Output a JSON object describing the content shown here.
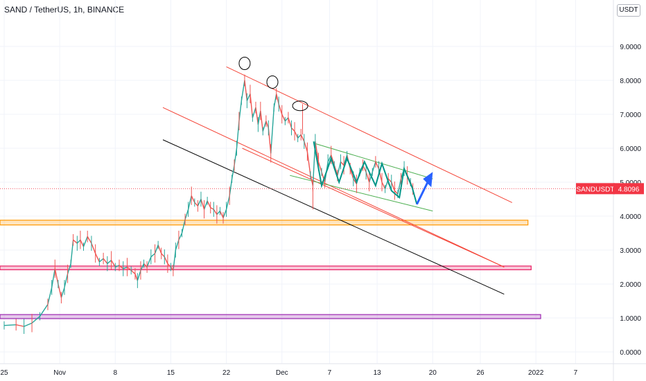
{
  "header": {
    "title": "SAND / TetherUS, 1h, BINANCE",
    "currency": "USDT"
  },
  "chart_data": {
    "type": "line",
    "title": "SAND / TetherUS, 1h, BINANCE",
    "xlabel": "",
    "ylabel": "",
    "ylim": [
      -0.4,
      10.1
    ],
    "grid": true,
    "y_ticks": [
      "0.0000",
      "1.0000",
      "2.0000",
      "3.0000",
      "4.0000",
      "5.0000",
      "6.0000",
      "7.0000",
      "8.0000",
      "9.0000"
    ],
    "x_ticks": [
      {
        "label": "25",
        "day": 0
      },
      {
        "label": "Nov",
        "day": 7
      },
      {
        "label": "8",
        "day": 14
      },
      {
        "label": "15",
        "day": 21
      },
      {
        "label": "22",
        "day": 28
      },
      {
        "label": "Dec",
        "day": 35
      },
      {
        "label": "7",
        "day": 41
      },
      {
        "label": "13",
        "day": 47
      },
      {
        "label": "20",
        "day": 54
      },
      {
        "label": "26",
        "day": 60
      },
      {
        "label": "2022",
        "day": 67
      },
      {
        "label": "7",
        "day": 72
      }
    ],
    "series": [
      {
        "color": "#26a69a",
        "points": [
          [
            0.0,
            0.78
          ],
          [
            1.5,
            0.8
          ],
          [
            2.5,
            0.75
          ],
          [
            3.5,
            0.85
          ],
          [
            4.5,
            1.05
          ],
          [
            5.5,
            1.4
          ],
          [
            6.0,
            1.9
          ],
          [
            6.4,
            2.45
          ],
          [
            6.8,
            2.0
          ],
          [
            7.2,
            1.6
          ],
          [
            7.6,
            1.9
          ],
          [
            8.0,
            2.3
          ],
          [
            8.4,
            2.6
          ],
          [
            8.7,
            3.3
          ],
          [
            9.2,
            3.2
          ],
          [
            9.6,
            3.3
          ],
          [
            10.0,
            3.1
          ],
          [
            10.5,
            3.4
          ],
          [
            11.0,
            3.2
          ],
          [
            11.5,
            2.9
          ],
          [
            12.0,
            2.65
          ],
          [
            12.5,
            2.75
          ],
          [
            13.0,
            2.6
          ],
          [
            13.5,
            2.7
          ],
          [
            14.0,
            2.5
          ],
          [
            14.5,
            2.55
          ],
          [
            15.0,
            2.45
          ],
          [
            15.5,
            2.5
          ],
          [
            16.0,
            2.4
          ],
          [
            16.5,
            2.3
          ],
          [
            16.8,
            2.1
          ],
          [
            17.2,
            2.4
          ],
          [
            17.6,
            2.6
          ],
          [
            18.0,
            2.5
          ],
          [
            18.5,
            2.8
          ],
          [
            19.0,
            2.9
          ],
          [
            19.4,
            3.15
          ],
          [
            19.8,
            2.9
          ],
          [
            20.2,
            2.8
          ],
          [
            20.6,
            2.6
          ],
          [
            21.0,
            2.5
          ],
          [
            21.3,
            2.4
          ],
          [
            21.6,
            3.0
          ],
          [
            22.0,
            3.3
          ],
          [
            22.4,
            3.5
          ],
          [
            22.8,
            3.9
          ],
          [
            23.2,
            4.2
          ],
          [
            23.6,
            4.6
          ],
          [
            24.0,
            4.4
          ],
          [
            24.4,
            4.3
          ],
          [
            24.8,
            4.5
          ],
          [
            25.2,
            4.2
          ],
          [
            25.6,
            4.45
          ],
          [
            26.0,
            4.25
          ],
          [
            26.4,
            4.2
          ],
          [
            26.8,
            4.05
          ],
          [
            27.2,
            4.15
          ],
          [
            27.6,
            3.95
          ],
          [
            28.0,
            4.2
          ],
          [
            28.4,
            4.6
          ],
          [
            28.7,
            5.1
          ],
          [
            29.0,
            5.5
          ],
          [
            29.3,
            6.0
          ],
          [
            29.6,
            6.8
          ],
          [
            29.9,
            7.4
          ],
          [
            30.3,
            8.0
          ],
          [
            30.6,
            7.4
          ],
          [
            31.0,
            7.6
          ],
          [
            31.3,
            6.9
          ],
          [
            31.7,
            7.2
          ],
          [
            32.0,
            6.7
          ],
          [
            32.3,
            7.1
          ],
          [
            32.6,
            6.5
          ],
          [
            33.0,
            6.8
          ],
          [
            33.3,
            6.6
          ],
          [
            33.6,
            5.85
          ],
          [
            34.0,
            7.2
          ],
          [
            34.3,
            7.6
          ],
          [
            34.6,
            7.3
          ],
          [
            35.0,
            7.0
          ],
          [
            35.4,
            6.8
          ],
          [
            35.8,
            6.9
          ],
          [
            36.2,
            6.6
          ],
          [
            36.6,
            6.5
          ],
          [
            37.0,
            6.3
          ],
          [
            37.4,
            6.4
          ],
          [
            37.8,
            6.2
          ],
          [
            38.2,
            5.9
          ],
          [
            38.6,
            5.2
          ],
          [
            38.9,
            4.9
          ],
          [
            39.2,
            6.2
          ],
          [
            39.6,
            5.6
          ],
          [
            40.0,
            5.3
          ],
          [
            40.4,
            5.0
          ],
          [
            40.8,
            5.6
          ],
          [
            41.2,
            5.8
          ],
          [
            41.6,
            5.5
          ],
          [
            42.0,
            5.2
          ],
          [
            42.4,
            5.6
          ],
          [
            42.8,
            5.5
          ],
          [
            43.2,
            5.8
          ],
          [
            43.6,
            5.4
          ],
          [
            44.0,
            5.1
          ],
          [
            44.4,
            4.95
          ],
          [
            44.8,
            5.3
          ],
          [
            45.2,
            5.5
          ],
          [
            45.6,
            5.3
          ],
          [
            46.0,
            5.0
          ],
          [
            46.4,
            5.3
          ],
          [
            46.8,
            5.6
          ],
          [
            47.2,
            5.4
          ],
          [
            47.6,
            5.0
          ],
          [
            48.0,
            4.8
          ],
          [
            48.4,
            5.1
          ],
          [
            48.8,
            5.0
          ],
          [
            49.2,
            4.75
          ],
          [
            49.6,
            4.65
          ],
          [
            50.0,
            5.1
          ],
          [
            50.4,
            5.4
          ],
          [
            50.8,
            5.2
          ],
          [
            51.2,
            5.0
          ],
          [
            51.5,
            4.8
          ]
        ]
      }
    ],
    "horizontal_zones": [
      {
        "name": "orange-zone",
        "y_low": 3.74,
        "y_high": 3.88,
        "color": "#ff9800"
      },
      {
        "name": "red-zone",
        "y_low": 2.42,
        "y_high": 2.53,
        "color": "#e91e63"
      },
      {
        "name": "purple-zone",
        "y_low": 0.98,
        "y_high": 1.1,
        "color": "#9c27b0"
      }
    ],
    "trend_lines": [
      {
        "name": "upper-red-line",
        "from": [
          28.0,
          8.4
        ],
        "to": [
          64.0,
          4.4
        ],
        "color": "#f44336"
      },
      {
        "name": "middle-red-line",
        "from": [
          20.0,
          7.2
        ],
        "to": [
          63.0,
          2.5
        ],
        "color": "#f44336"
      },
      {
        "name": "lower-red-line",
        "from": [
          30.0,
          6.0
        ],
        "to": [
          63.0,
          2.5
        ],
        "color": "#f44336"
      },
      {
        "name": "black-line",
        "from": [
          20.0,
          6.25
        ],
        "to": [
          63.0,
          1.7
        ],
        "color": "#000000"
      },
      {
        "name": "teal-channel-upper",
        "from": [
          39.0,
          6.15
        ],
        "to": [
          54.0,
          5.1
        ],
        "color": "#4caf50"
      },
      {
        "name": "teal-channel-lower",
        "from": [
          36.0,
          5.2
        ],
        "to": [
          54.0,
          4.15
        ],
        "color": "#4caf50"
      }
    ],
    "zigzag": [
      [
        39.0,
        6.2
      ],
      [
        40.0,
        4.9
      ],
      [
        41.2,
        5.7
      ],
      [
        42.2,
        5.0
      ],
      [
        43.2,
        5.7
      ],
      [
        44.4,
        5.0
      ],
      [
        45.4,
        5.6
      ],
      [
        46.8,
        4.9
      ],
      [
        47.6,
        5.55
      ],
      [
        48.8,
        4.75
      ],
      [
        49.8,
        4.55
      ],
      [
        50.4,
        5.4
      ],
      [
        51.4,
        4.85
      ],
      [
        52.0,
        4.35
      ]
    ],
    "projection_arrow": {
      "from": [
        52.0,
        4.35
      ],
      "to": [
        54.0,
        5.3
      ],
      "color": "#2962ff"
    },
    "circled_peaks": [
      [
        30.3,
        8.5
      ],
      [
        33.8,
        7.95
      ],
      [
        37.3,
        7.25
      ]
    ],
    "current_price": {
      "label": "SANDUSDT",
      "value": "4.8096",
      "y": 4.8096,
      "color": "#f23645"
    }
  }
}
